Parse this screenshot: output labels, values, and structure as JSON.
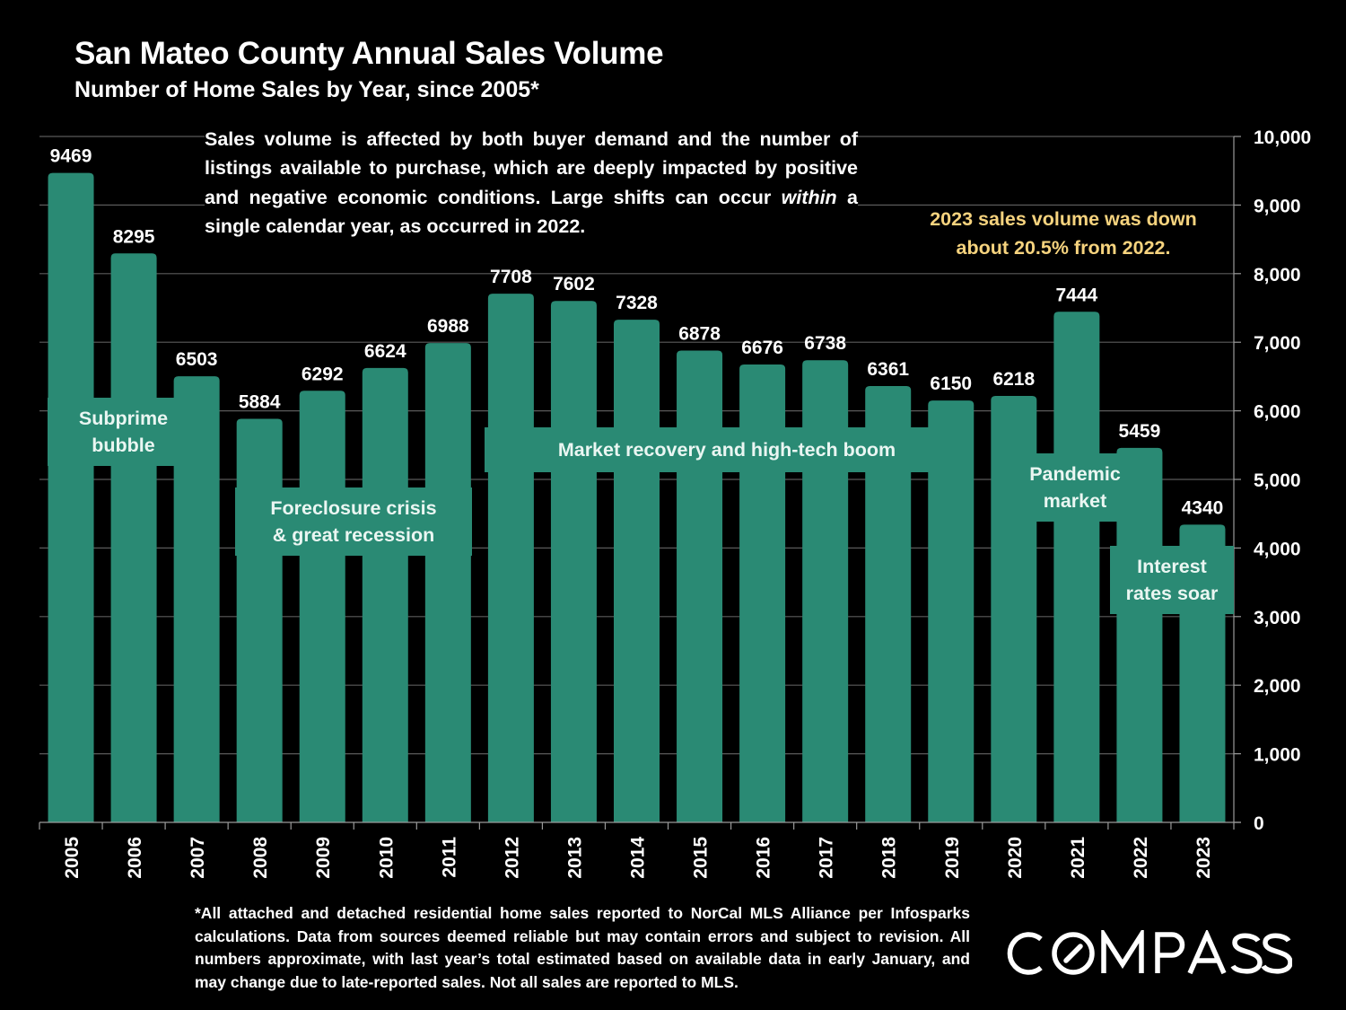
{
  "header": {
    "title": "San Mateo County Annual Sales Volume",
    "subtitle": "Number of Home Sales by Year, since 2005*"
  },
  "intro_text": {
    "part1": "Sales volume is affected by both buyer demand and the number of listings available to purchase, which are deeply impacted by positive and negative economic conditions. Large shifts can occur ",
    "emphasis": "within",
    "part2": " a single calendar year, as occurred in 2022."
  },
  "callout": {
    "line1": "2023 sales volume was down",
    "line2": "about 20.5% from 2022.",
    "color": "#f6d37e"
  },
  "annotations": {
    "subprime": [
      "Subprime",
      "bubble"
    ],
    "foreclosure": [
      "Foreclosure crisis",
      "& great recession"
    ],
    "recovery": [
      "Market recovery and high-tech boom"
    ],
    "pandemic": [
      "Pandemic",
      "market"
    ],
    "interest": [
      "Interest",
      "rates soar"
    ]
  },
  "footnote": "*All attached and detached residential home sales reported to NorCal MLS Alliance per Infosparks calculations. Data from sources deemed reliable but may contain errors and subject to revision. All numbers approximate, with last year’s total estimated based on available data in early January, and may change due to late-reported sales. Not all sales are reported to MLS.",
  "logo": {
    "text": "COMPASS"
  },
  "chart_data": {
    "type": "bar",
    "title": "San Mateo County Annual Sales Volume",
    "subtitle": "Number of Home Sales by Year, since 2005*",
    "xlabel": "",
    "ylabel": "",
    "categories": [
      "2005",
      "2006",
      "2007",
      "2008",
      "2009",
      "2010",
      "2011",
      "2012",
      "2013",
      "2014",
      "2015",
      "2016",
      "2017",
      "2018",
      "2019",
      "2020",
      "2021",
      "2022",
      "2023"
    ],
    "values": [
      9469,
      8295,
      6503,
      5884,
      6292,
      6624,
      6988,
      7708,
      7602,
      7328,
      6878,
      6676,
      6738,
      6361,
      6150,
      6218,
      7444,
      5459,
      4340
    ],
    "ylim": [
      0,
      10000
    ],
    "yticks": [
      0,
      1000,
      2000,
      3000,
      4000,
      5000,
      6000,
      7000,
      8000,
      9000,
      10000
    ],
    "ytick_labels": [
      "0",
      "1,000",
      "2,000",
      "3,000",
      "4,000",
      "5,000",
      "6,000",
      "7,000",
      "8,000",
      "9,000",
      "10,000"
    ],
    "y_axis_side": "right",
    "grid": true,
    "data_labels": true,
    "bar_color": "#2a8a74",
    "legend": "none"
  }
}
